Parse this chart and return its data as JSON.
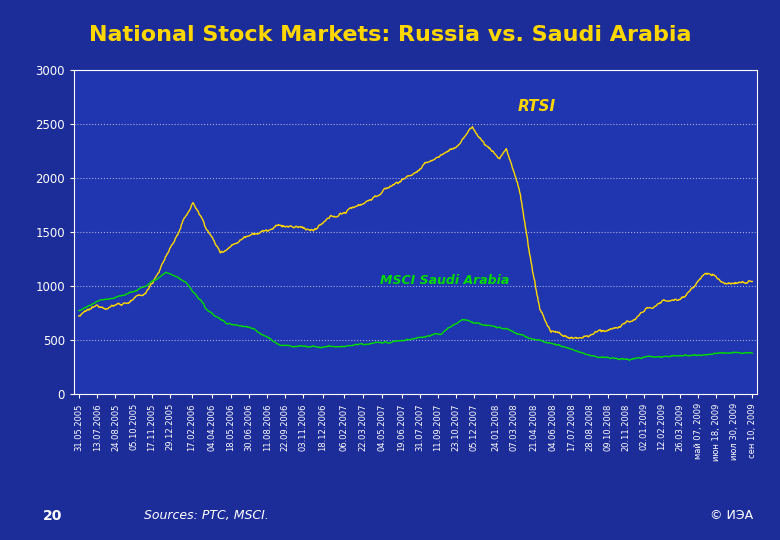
{
  "title": "National Stock Markets: Russia vs. Saudi Arabia",
  "title_color": "#FFD700",
  "title_fontsize": 16,
  "bg_color": "#1a2a8a",
  "plot_bg_color": "#2035a0",
  "rtsi_color": "#FFD700",
  "msci_color": "#00DD00",
  "rtsi_label": "RTSI",
  "msci_label": "MSCI Saudi Arabia",
  "ylim": [
    0,
    3000
  ],
  "yticks": [
    0,
    500,
    1000,
    1500,
    2000,
    2500,
    3000
  ],
  "grid_color": "#FFFFFF",
  "axis_color": "#FFFFFF",
  "tick_color": "#FFFFFF",
  "source_text": "Sources: РТС, MSCI.",
  "page_num": "20",
  "copyright": "© ИЭА"
}
